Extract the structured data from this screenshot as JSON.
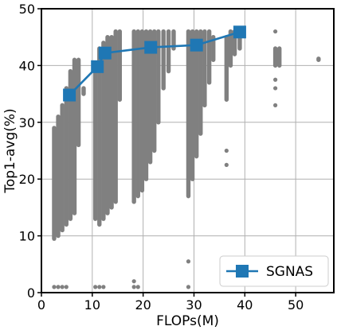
{
  "chart_data": {
    "type": "scatter",
    "xlabel": "FLOPs(M)",
    "ylabel": "Top1-avg(%)",
    "xlim": [
      0,
      57.5
    ],
    "ylim": [
      0,
      50
    ],
    "xticks": [
      0,
      10,
      20,
      30,
      40,
      50
    ],
    "yticks": [
      0,
      10,
      20,
      30,
      40,
      50
    ],
    "grid": true,
    "legend": {
      "placement": "bottom-right"
    },
    "colors": {
      "population": "#808080",
      "sgnas": "#1f77b4",
      "grid": "#b0b0b0"
    },
    "population_columns": [
      {
        "x": 2.5,
        "ymin": 9.5,
        "ymax": 29,
        "outliers": [
          1.0
        ]
      },
      {
        "x": 3.3,
        "ymin": 10,
        "ymax": 31,
        "outliers": [
          1.0
        ]
      },
      {
        "x": 4.1,
        "ymin": 11,
        "ymax": 33,
        "outliers": [
          1.0
        ]
      },
      {
        "x": 4.9,
        "ymin": 12,
        "ymax": 36,
        "outliers": [
          1.0
        ]
      },
      {
        "x": 5.7,
        "ymin": 13,
        "ymax": 39
      },
      {
        "x": 6.5,
        "ymin": 14,
        "ymax": 41
      },
      {
        "x": 7.3,
        "ymin": 26,
        "ymax": 41
      },
      {
        "x": 8.3,
        "ymin": 35,
        "ymax": 36
      },
      {
        "x": 10.6,
        "ymin": 13,
        "ymax": 40,
        "outliers": [
          1.0
        ]
      },
      {
        "x": 11.4,
        "ymin": 12,
        "ymax": 43,
        "outliers": [
          1.0
        ]
      },
      {
        "x": 12.2,
        "ymin": 13,
        "ymax": 44,
        "outliers": [
          1.0
        ]
      },
      {
        "x": 13.0,
        "ymin": 14,
        "ymax": 45
      },
      {
        "x": 13.8,
        "ymin": 15,
        "ymax": 45
      },
      {
        "x": 14.6,
        "ymin": 16,
        "ymax": 46
      },
      {
        "x": 15.4,
        "ymin": 34,
        "ymax": 46
      },
      {
        "x": 18.2,
        "ymin": 16,
        "ymax": 46,
        "outliers": [
          2.0,
          1.0
        ]
      },
      {
        "x": 19.0,
        "ymin": 17,
        "ymax": 46,
        "outliers": [
          1.0
        ]
      },
      {
        "x": 19.8,
        "ymin": 18,
        "ymax": 46
      },
      {
        "x": 20.6,
        "ymin": 20,
        "ymax": 46
      },
      {
        "x": 21.4,
        "ymin": 23,
        "ymax": 46
      },
      {
        "x": 22.2,
        "ymin": 25,
        "ymax": 46
      },
      {
        "x": 23.0,
        "ymin": 30,
        "ymax": 46
      },
      {
        "x": 24.0,
        "ymin": 36,
        "ymax": 46
      },
      {
        "x": 25.0,
        "ymin": 39,
        "ymax": 46
      },
      {
        "x": 26.0,
        "ymin": 43,
        "ymax": 46
      },
      {
        "x": 28.9,
        "ymin": 17,
        "ymax": 46,
        "outliers": [
          5.5,
          1.0
        ]
      },
      {
        "x": 29.7,
        "ymin": 20,
        "ymax": 46
      },
      {
        "x": 30.5,
        "ymin": 24,
        "ymax": 46
      },
      {
        "x": 31.3,
        "ymin": 28,
        "ymax": 46
      },
      {
        "x": 32.1,
        "ymin": 33,
        "ymax": 46
      },
      {
        "x": 33.0,
        "ymin": 37,
        "ymax": 46
      },
      {
        "x": 33.8,
        "ymin": 41,
        "ymax": 45
      },
      {
        "x": 36.4,
        "ymin": 34,
        "ymax": 45,
        "outliers": [
          25.0,
          22.5
        ]
      },
      {
        "x": 37.2,
        "ymin": 40,
        "ymax": 46
      },
      {
        "x": 38.0,
        "ymin": 42,
        "ymax": 46
      },
      {
        "x": 39.0,
        "ymin": 43,
        "ymax": 46
      },
      {
        "x": 46.0,
        "ymin": 40,
        "ymax": 43,
        "outliers": [
          46.0,
          37.5,
          36.0,
          33.0
        ]
      },
      {
        "x": 46.8,
        "ymin": 40,
        "ymax": 43
      },
      {
        "x": 54.5,
        "ymin": 41,
        "ymax": 41.2
      }
    ],
    "series": [
      {
        "name": "SGNAS",
        "x": [
          5.5,
          11.0,
          12.5,
          21.5,
          30.5,
          39.0
        ],
        "y": [
          34.8,
          39.8,
          42.2,
          43.2,
          43.6,
          45.9
        ]
      }
    ]
  }
}
